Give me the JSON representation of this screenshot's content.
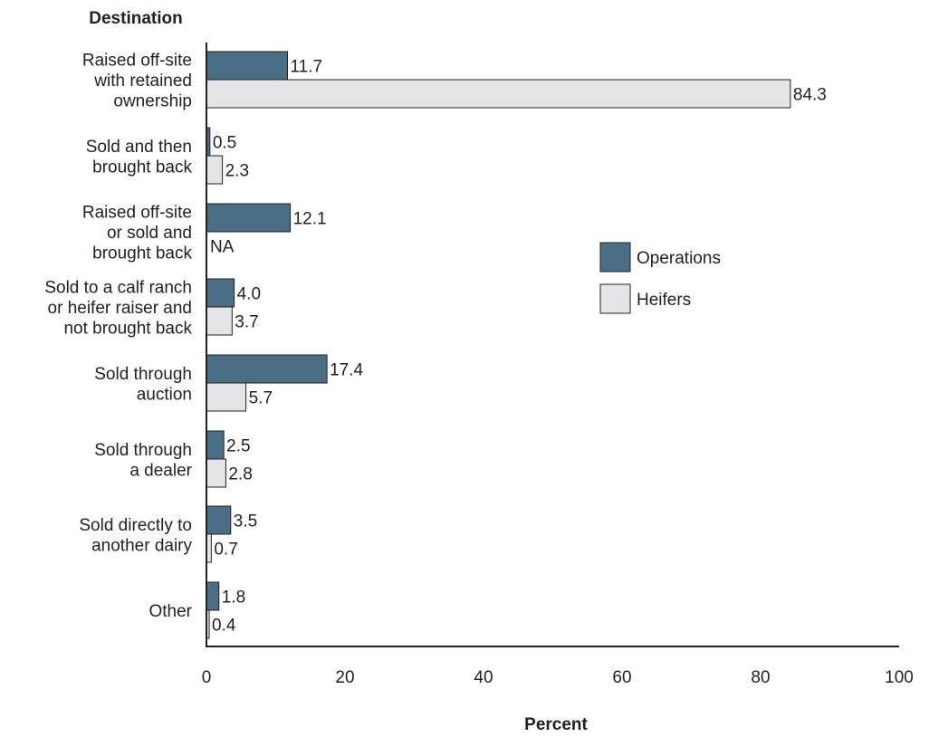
{
  "chart_data": {
    "type": "bar",
    "orientation": "horizontal",
    "ylabel": "Destination",
    "xlabel": "Percent",
    "xlim": [
      0,
      100
    ],
    "xticks": [
      "0",
      "20",
      "40",
      "60",
      "80",
      "100"
    ],
    "categories": [
      [
        "Raised off-site",
        "with retained",
        "ownership"
      ],
      [
        "Sold and then",
        "brought back"
      ],
      [
        "Raised off-site",
        "or sold and",
        "brought back"
      ],
      [
        "Sold to a calf ranch",
        "or heifer raiser and",
        "not brought back"
      ],
      [
        "Sold through",
        "auction"
      ],
      [
        "Sold through",
        "a dealer"
      ],
      [
        "Sold directly to",
        "another dairy"
      ],
      [
        "Other"
      ]
    ],
    "series": [
      {
        "name": "Operations",
        "color": "#4a6e85",
        "values": [
          11.7,
          0.5,
          12.1,
          4.0,
          17.4,
          2.5,
          3.5,
          1.8
        ],
        "labels": [
          "11.7",
          "0.5",
          "12.1",
          "4.0",
          "17.4",
          "2.5",
          "3.5",
          "1.8"
        ]
      },
      {
        "name": "Heifers",
        "color": "#e4e4e6",
        "values": [
          84.3,
          2.3,
          null,
          3.7,
          5.7,
          2.8,
          0.7,
          0.4
        ],
        "labels": [
          "84.3",
          "2.3",
          "NA",
          "3.7",
          "5.7",
          "2.8",
          "0.7",
          "0.4"
        ]
      }
    ],
    "legend_position": "right-middle",
    "grid": false
  }
}
